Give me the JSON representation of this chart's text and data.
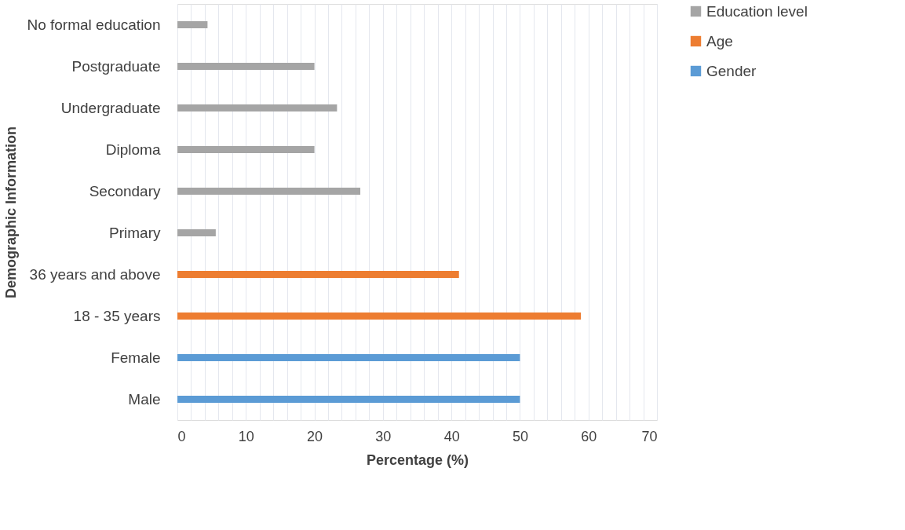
{
  "chart_data": {
    "type": "bar",
    "orientation": "horizontal",
    "xlabel": "Percentage (%)",
    "ylabel": "Demographic Information",
    "categories": [
      "No formal education",
      "Postgraduate",
      "Undergraduate",
      "Diploma",
      "Secondary",
      "Primary",
      "36 years and above",
      "18 - 35 years",
      "Female",
      "Male"
    ],
    "series": [
      {
        "name": "Education level",
        "color": "#a5a5a5",
        "values": [
          4.4,
          20,
          23.3,
          20,
          26.7,
          5.6,
          null,
          null,
          null,
          null
        ]
      },
      {
        "name": "Age",
        "color": "#ed7d31",
        "values": [
          null,
          null,
          null,
          null,
          null,
          null,
          41.1,
          58.9,
          null,
          null
        ]
      },
      {
        "name": "Gender",
        "color": "#5b9bd5",
        "values": [
          null,
          null,
          null,
          null,
          null,
          null,
          null,
          null,
          50,
          50
        ]
      }
    ],
    "xlim": [
      0,
      70
    ],
    "xticks": [
      0,
      {
        "value": 2,
        "label": null
      },
      {
        "value": 4,
        "label": null
      },
      {
        "value": 6,
        "label": null
      },
      {
        "value": 8,
        "label": null
      },
      10,
      {
        "value": 12,
        "label": null
      },
      {
        "value": 14,
        "label": null
      },
      {
        "value": 16,
        "label": null
      },
      {
        "value": 18,
        "label": null
      },
      20,
      {
        "value": 22,
        "label": null
      },
      {
        "value": 24,
        "label": null
      },
      {
        "value": 26,
        "label": null
      },
      {
        "value": 28,
        "label": null
      },
      30,
      {
        "value": 32,
        "label": null
      },
      {
        "value": 34,
        "label": null
      },
      {
        "value": 36,
        "label": null
      },
      {
        "value": 38,
        "label": null
      },
      40,
      {
        "value": 42,
        "label": null
      },
      {
        "value": 44,
        "label": null
      },
      {
        "value": 46,
        "label": null
      },
      {
        "value": 48,
        "label": null
      },
      50,
      {
        "value": 52,
        "label": null
      },
      {
        "value": 54,
        "label": null
      },
      {
        "value": 56,
        "label": null
      },
      {
        "value": 58,
        "label": null
      },
      60,
      {
        "value": 62,
        "label": null
      },
      {
        "value": 64,
        "label": null
      },
      {
        "value": 66,
        "label": null
      },
      {
        "value": 68,
        "label": null
      },
      70
    ],
    "grid": "x",
    "legend": "right"
  }
}
